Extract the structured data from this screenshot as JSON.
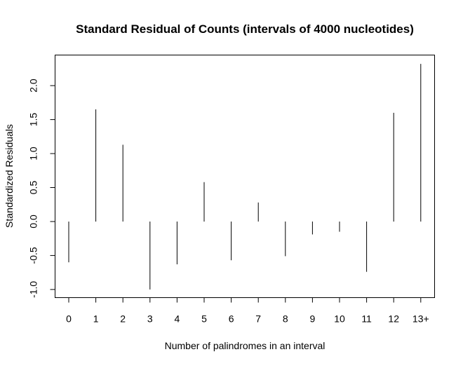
{
  "chart_data": {
    "type": "bar",
    "title": "Standard Residual of Counts (intervals of 4000 nucleotides)",
    "xlabel": "Number of palindromes in an interval",
    "ylabel": "Standardized Residuals",
    "categories": [
      "0",
      "1",
      "2",
      "3",
      "4",
      "5",
      "6",
      "7",
      "8",
      "9",
      "10",
      "11",
      "12",
      "13+"
    ],
    "values": [
      -0.6,
      1.65,
      1.13,
      -1.0,
      -0.63,
      0.58,
      -0.57,
      0.28,
      -0.51,
      -0.19,
      -0.15,
      -0.74,
      1.6,
      2.32
    ],
    "ylim": [
      -1.12,
      2.45
    ],
    "yticks": [
      -1.0,
      -0.5,
      0.0,
      0.5,
      1.0,
      1.5,
      2.0
    ],
    "ytick_labels": [
      "-1.0",
      "-0.5",
      "0.0",
      "0.5",
      "1.0",
      "1.5",
      "2.0"
    ],
    "grid": false,
    "legend": "none"
  }
}
